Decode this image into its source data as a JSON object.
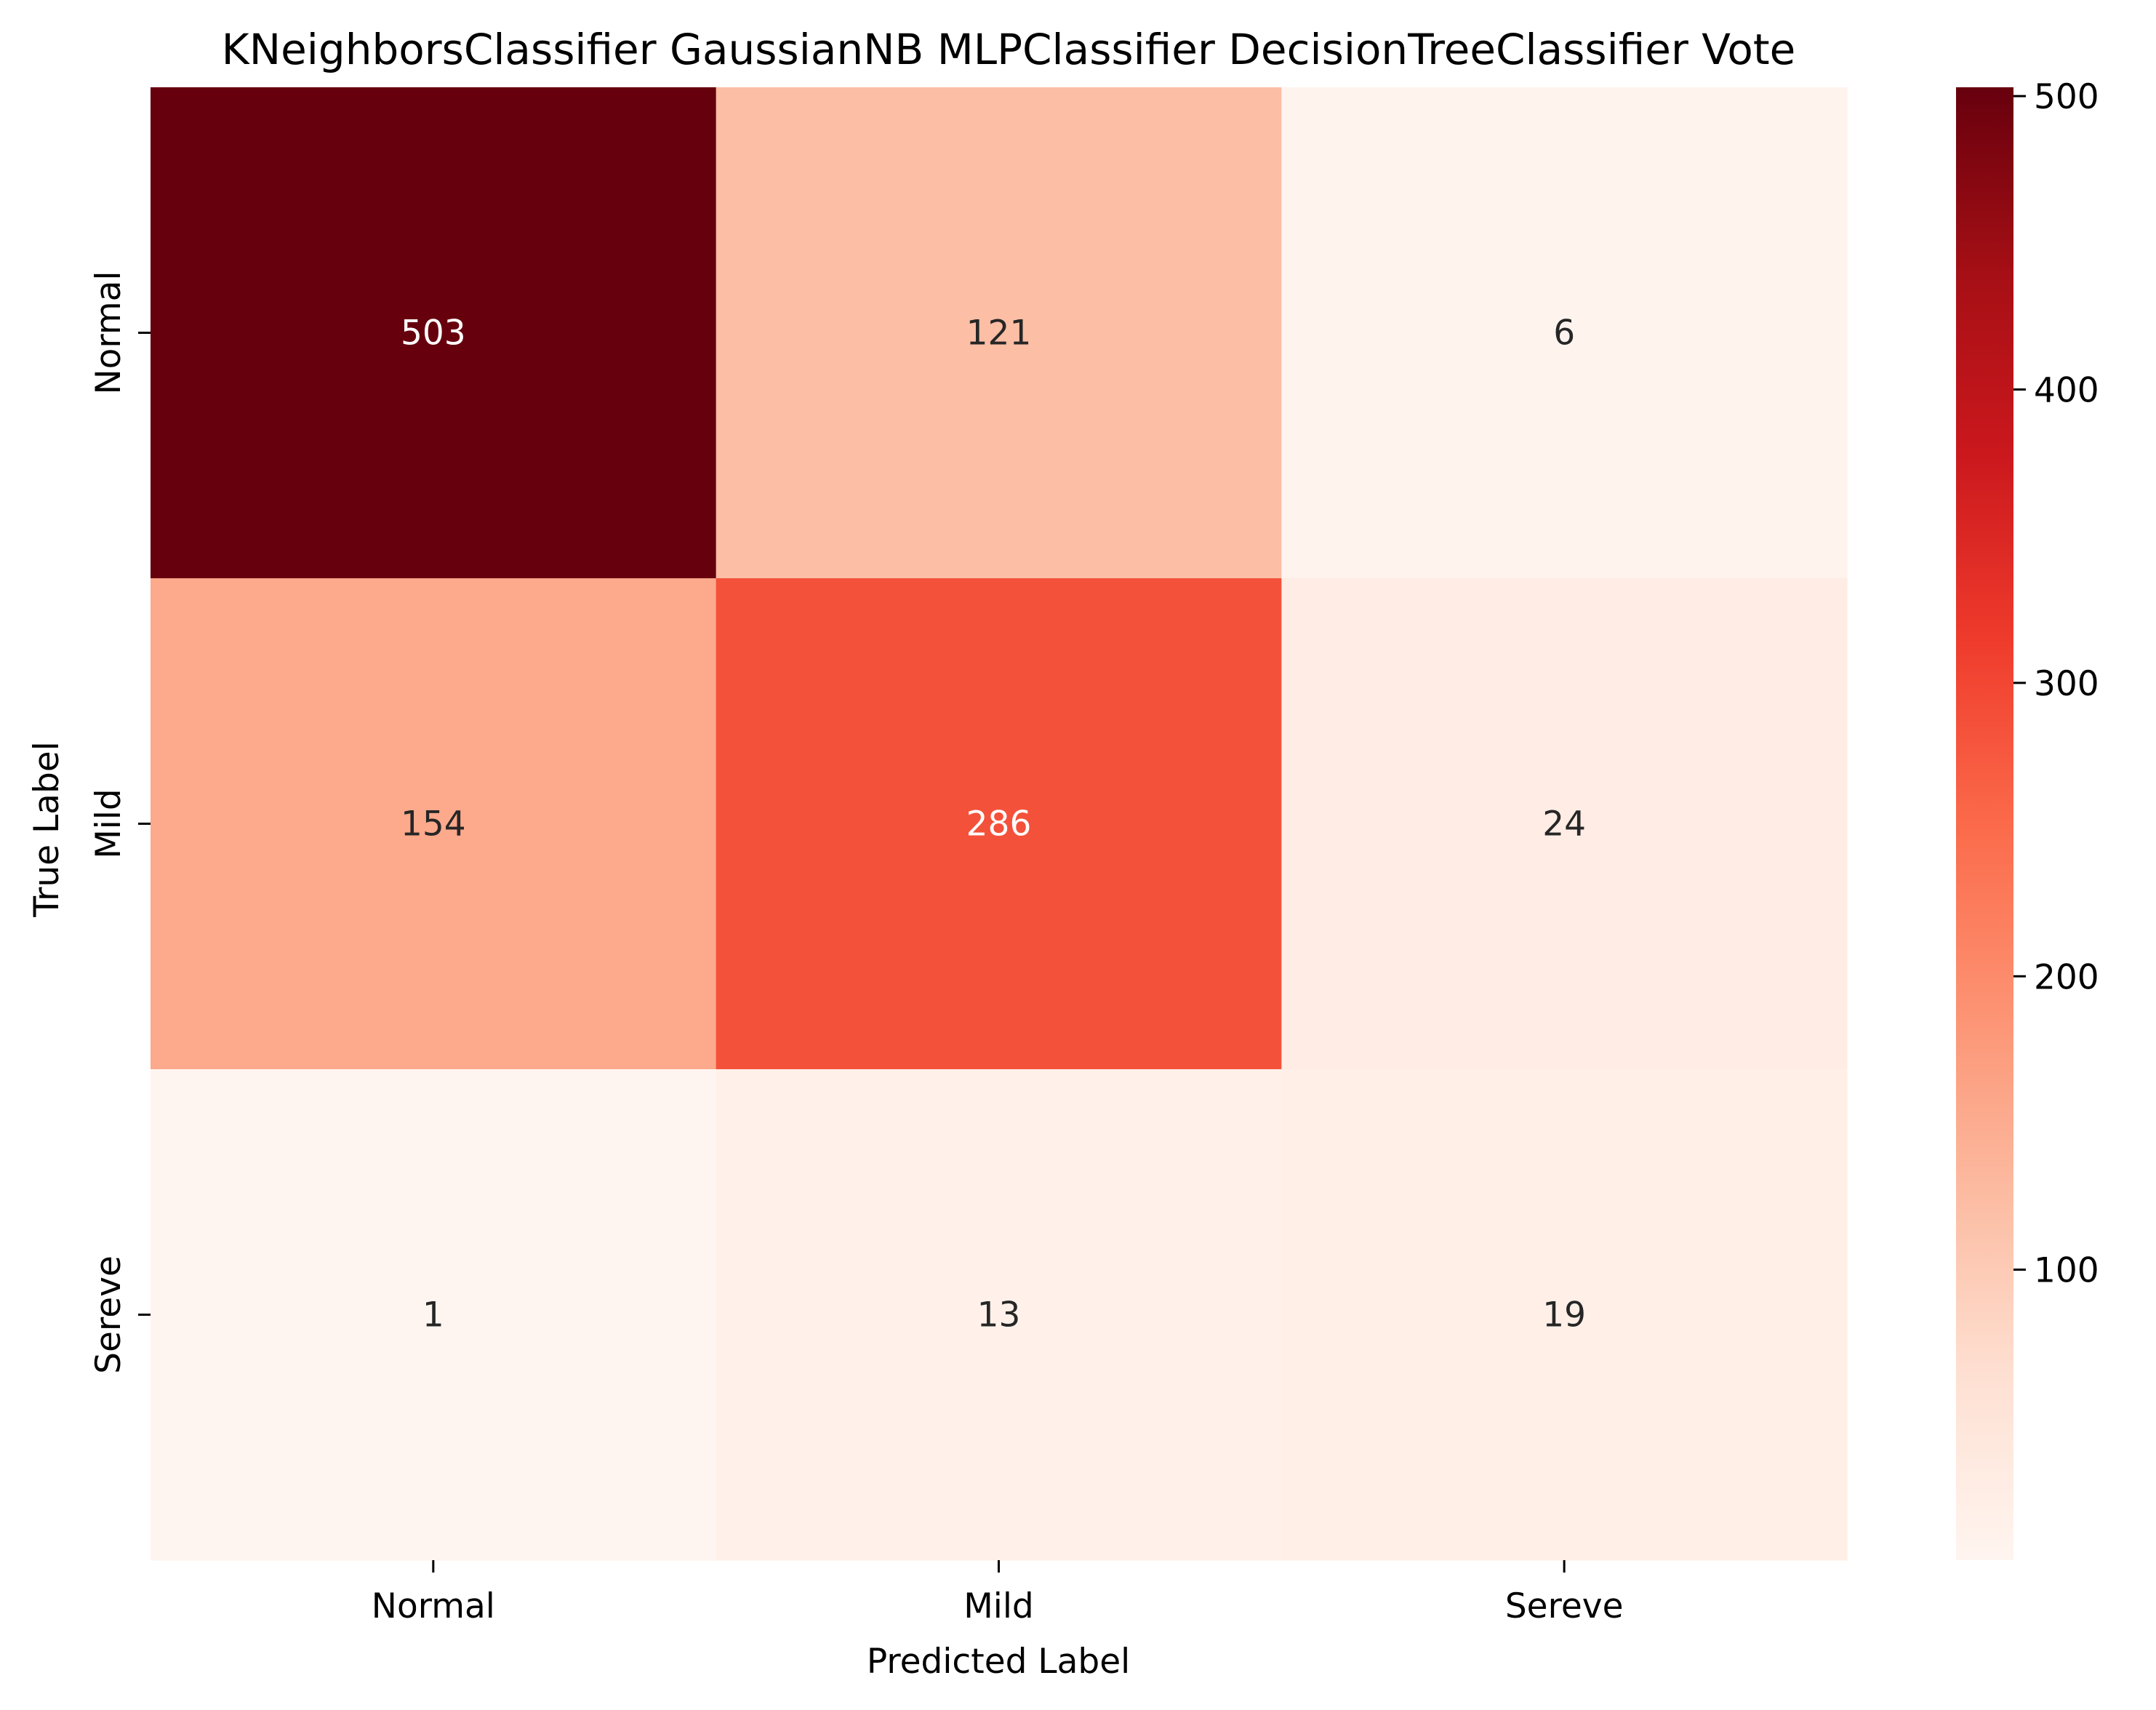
{
  "chart_data": {
    "type": "heatmap",
    "title": "KNeighborsClassifier GaussianNB MLPClassifier DecisionTreeClassifier Vote",
    "xlabel": "Predicted Label",
    "ylabel": "True Label",
    "x_categories": [
      "Normal",
      "Mild",
      "Sereve"
    ],
    "y_categories": [
      "Normal",
      "Mild",
      "Sereve"
    ],
    "values": [
      [
        503,
        121,
        6
      ],
      [
        154,
        286,
        24
      ],
      [
        1,
        13,
        19
      ]
    ],
    "colormap": "Reds",
    "color_range": [
      1,
      503
    ],
    "colorbar_ticks": [
      100,
      200,
      300,
      400,
      500
    ],
    "annotation_dark_text": "#262626",
    "annotation_light_text": "#ffffff"
  }
}
